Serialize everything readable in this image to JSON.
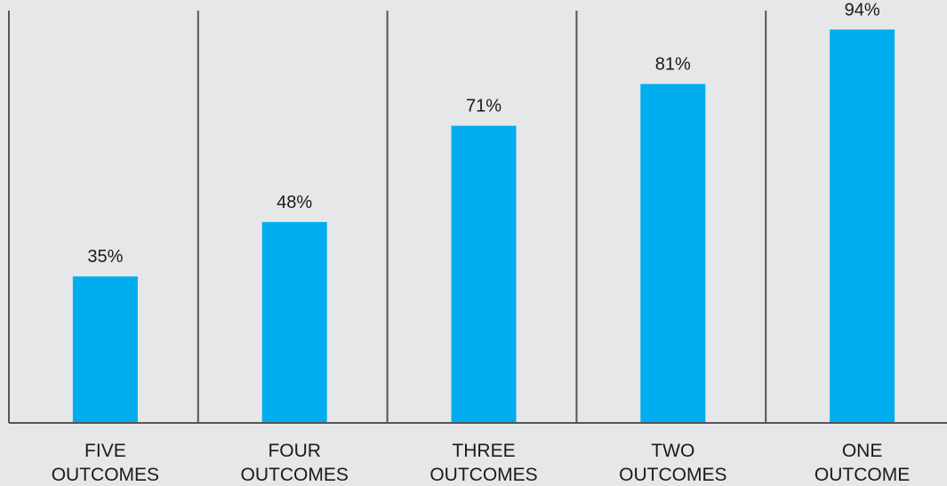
{
  "chart_data": {
    "type": "bar",
    "categories": [
      [
        "FIVE",
        "OUTCOMES"
      ],
      [
        "FOUR",
        "OUTCOMES"
      ],
      [
        "THREE",
        "OUTCOMES"
      ],
      [
        "TWO",
        "OUTCOMES"
      ],
      [
        "ONE",
        "OUTCOME"
      ]
    ],
    "values": [
      35,
      48,
      71,
      81,
      94
    ],
    "value_labels": [
      "35%",
      "48%",
      "71%",
      "81%",
      "94%"
    ],
    "unit": "%",
    "ylim": [
      0,
      100
    ],
    "title": "",
    "xlabel": "",
    "ylabel": "",
    "grid": false,
    "legend": "none"
  },
  "colors": {
    "background": "#e6e7e8",
    "bar": "#00aeef",
    "axis": "#555555",
    "text": "#1a1a1a"
  }
}
